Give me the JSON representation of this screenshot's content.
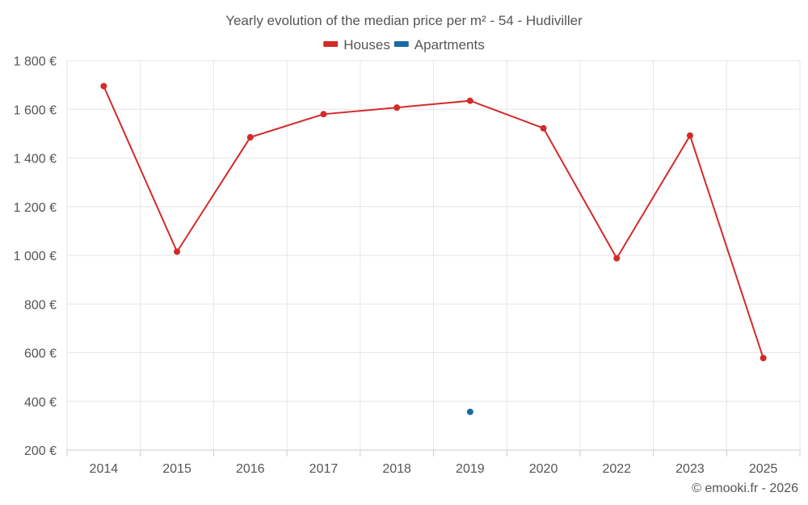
{
  "chart_data": {
    "type": "line",
    "title": "Yearly evolution of the median price per m² - 54 - Hudiviller",
    "categories": [
      "2014",
      "2015",
      "2016",
      "2017",
      "2018",
      "2019",
      "2020",
      "2022",
      "2023",
      "2025"
    ],
    "series": [
      {
        "name": "Houses",
        "color": "#d42a2a",
        "values": [
          1695,
          1015,
          1485,
          1580,
          1607,
          1635,
          1522,
          988,
          1492,
          578
        ]
      },
      {
        "name": "Apartments",
        "color": "#1a6aa3",
        "values": [
          null,
          null,
          null,
          null,
          null,
          357,
          null,
          null,
          null,
          null
        ]
      }
    ],
    "ylim": [
      200,
      1800
    ],
    "yticks": [
      {
        "value": 200,
        "label": "200 €"
      },
      {
        "value": 400,
        "label": "400 €"
      },
      {
        "value": 600,
        "label": "600 €"
      },
      {
        "value": 800,
        "label": "800 €"
      },
      {
        "value": 1000,
        "label": "1 000 €"
      },
      {
        "value": 1200,
        "label": "1 200 €"
      },
      {
        "value": 1400,
        "label": "1 400 €"
      },
      {
        "value": 1600,
        "label": "1 600 €"
      },
      {
        "value": 1800,
        "label": "1 800 €"
      }
    ],
    "grid": true,
    "legend": "top-center",
    "xlabel": "",
    "ylabel": ""
  },
  "credit": "© emooki.fr - 2026"
}
